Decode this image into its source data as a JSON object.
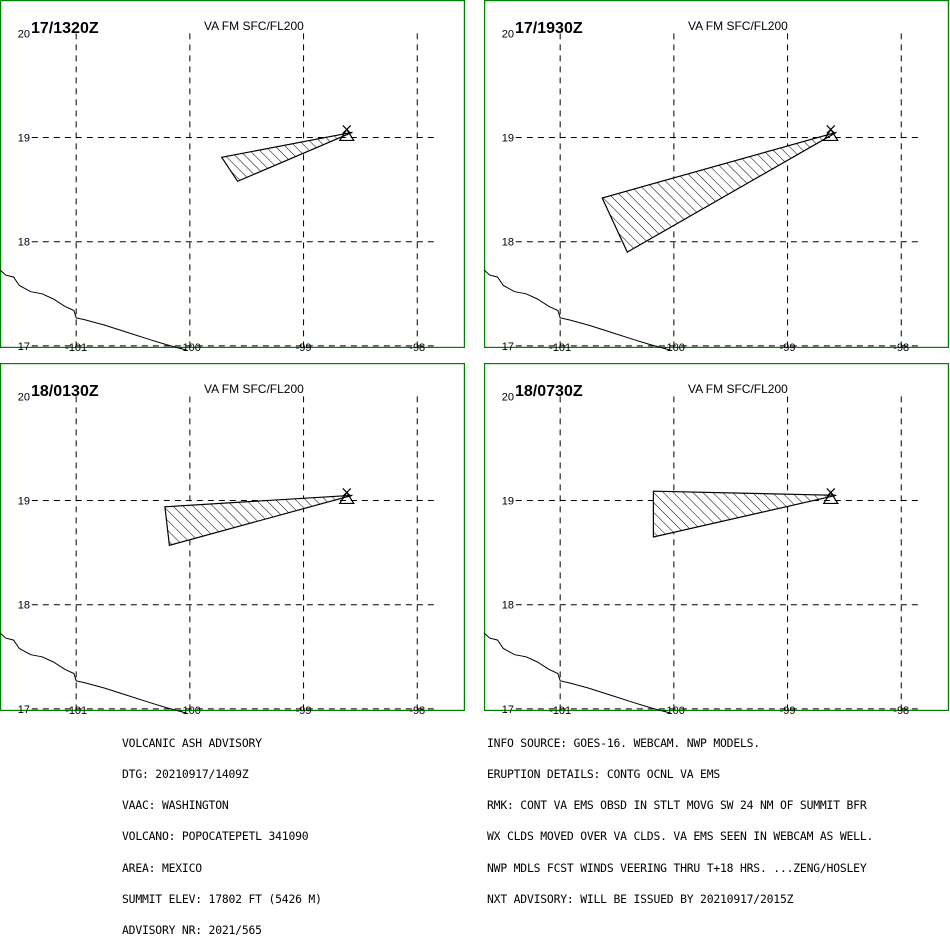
{
  "panels": [
    {
      "dtg": "17/1320Z",
      "level": "VA FM SFC/FL200",
      "ash_cloud": [
        [
          -98.57,
          19.05
        ],
        [
          -99.72,
          18.81
        ],
        [
          -99.58,
          18.58
        ]
      ]
    },
    {
      "dtg": "17/1930Z",
      "level": "VA FM SFC/FL200",
      "ash_cloud": [
        [
          -98.57,
          19.05
        ],
        [
          -100.63,
          18.42
        ],
        [
          -100.41,
          17.9
        ]
      ]
    },
    {
      "dtg": "18/0130Z",
      "level": "VA FM SFC/FL200",
      "ash_cloud": [
        [
          -98.57,
          19.05
        ],
        [
          -100.22,
          18.94
        ],
        [
          -100.18,
          18.57
        ]
      ]
    },
    {
      "dtg": "18/0730Z",
      "level": "VA FM SFC/FL200",
      "ash_cloud": [
        [
          -98.57,
          19.05
        ],
        [
          -100.18,
          19.09
        ],
        [
          -100.18,
          18.65
        ]
      ]
    }
  ],
  "map": {
    "lon_range": [
      -101.67,
      -97.58
    ],
    "lat_range": [
      16.98,
      20.32
    ],
    "lon_ticks": [
      -101,
      -100,
      -99,
      -98
    ],
    "lat_ticks": [
      17,
      18,
      19,
      20
    ],
    "lon_tick_labels": [
      "-101",
      "-100",
      "-99",
      "-98"
    ],
    "lat_tick_labels": [
      "17",
      "18",
      "19",
      "20"
    ],
    "volcano": {
      "name": "POPOCATEPETL",
      "lon": -98.62,
      "lat": 19.02
    },
    "coastline": [
      [
        -101.67,
        17.73
      ],
      [
        -101.62,
        17.68
      ],
      [
        -101.55,
        17.66
      ],
      [
        -101.5,
        17.58
      ],
      [
        -101.4,
        17.52
      ],
      [
        -101.3,
        17.5
      ],
      [
        -101.2,
        17.45
      ],
      [
        -101.1,
        17.38
      ],
      [
        -101.02,
        17.34
      ],
      [
        -101.0,
        17.27
      ],
      [
        -100.92,
        17.25
      ],
      [
        -100.75,
        17.2
      ],
      [
        -100.55,
        17.13
      ],
      [
        -100.35,
        17.06
      ],
      [
        -100.2,
        17.01
      ],
      [
        -100.03,
        16.96
      ]
    ]
  },
  "advisory_left": [
    "VOLCANIC ASH ADVISORY",
    "DTG: 20210917/1409Z",
    "VAAC: WASHINGTON",
    "VOLCANO: POPOCATEPETL 341090",
    "AREA: MEXICO",
    "SUMMIT ELEV: 17802 FT (5426 M)",
    "ADVISORY NR: 2021/565"
  ],
  "advisory_right": [
    "INFO SOURCE: GOES-16. WEBCAM. NWP MODELS.",
    "ERUPTION DETAILS: CONTG OCNL VA EMS",
    "RMK: CONT VA EMS OBSD IN STLT MOVG SW 24 NM OF SUMMIT BFR",
    "WX CLDS MOVED OVER VA CLDS. VA EMS SEEN IN WEBCAM AS WELL.",
    "NWP MDLS FCST WINDS VEERING THRU T+18 HRS. ...ZENG/HOSLEY",
    "NXT ADVISORY: WILL BE ISSUED BY 20210917/2015Z"
  ],
  "colors": {
    "frame": "#008000",
    "ink": "#000000",
    "background": "#ffffff"
  }
}
